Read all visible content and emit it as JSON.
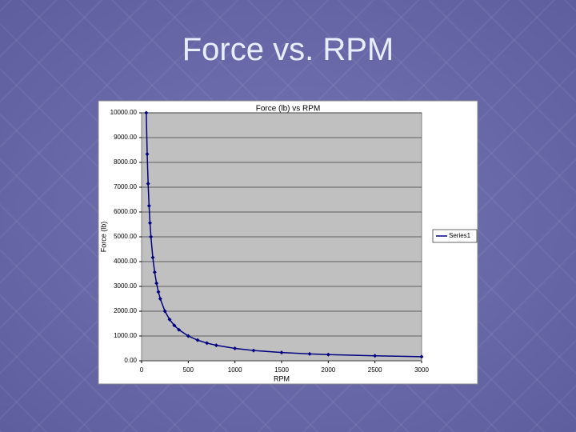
{
  "slide_title": "Force vs. RPM",
  "chart_data": {
    "type": "line",
    "title": "Force (lb) vs RPM",
    "x_label": "RPM",
    "y_label": "Force (lb)",
    "x": [
      50,
      60,
      70,
      80,
      90,
      100,
      120,
      140,
      160,
      180,
      200,
      250,
      300,
      350,
      400,
      500,
      600,
      700,
      800,
      1000,
      1200,
      1500,
      1800,
      2000,
      2500,
      3000
    ],
    "series": [
      {
        "name": "Series1",
        "color": "#000080",
        "values": [
          10000,
          8333,
          7143,
          6250,
          5556,
          5000,
          4167,
          3571,
          3125,
          2778,
          2500,
          2000,
          1667,
          1429,
          1250,
          1000,
          833,
          714,
          625,
          500,
          417,
          333,
          278,
          250,
          200,
          167
        ]
      }
    ],
    "xlim": [
      0,
      3000
    ],
    "xticks": [
      0,
      500,
      1000,
      1500,
      2000,
      2500,
      3000
    ],
    "ylim": [
      0,
      10000
    ],
    "yticks": [
      {
        "value": 0,
        "label": "0.00"
      },
      {
        "value": 1000,
        "label": "1000.00"
      },
      {
        "value": 2000,
        "label": "2000.00"
      },
      {
        "value": 3000,
        "label": "3000.00"
      },
      {
        "value": 4000,
        "label": "4000.00"
      },
      {
        "value": 5000,
        "label": "5000.00"
      },
      {
        "value": 6000,
        "label": "6000.00"
      },
      {
        "value": 7000,
        "label": "7000.00"
      },
      {
        "value": 8000,
        "label": "8000.00"
      },
      {
        "value": 9000,
        "label": "9000.00"
      },
      {
        "value": 10000,
        "label": "10000.00"
      }
    ],
    "grid": true,
    "legend": "right",
    "plot_background": "#c0c0c0"
  }
}
